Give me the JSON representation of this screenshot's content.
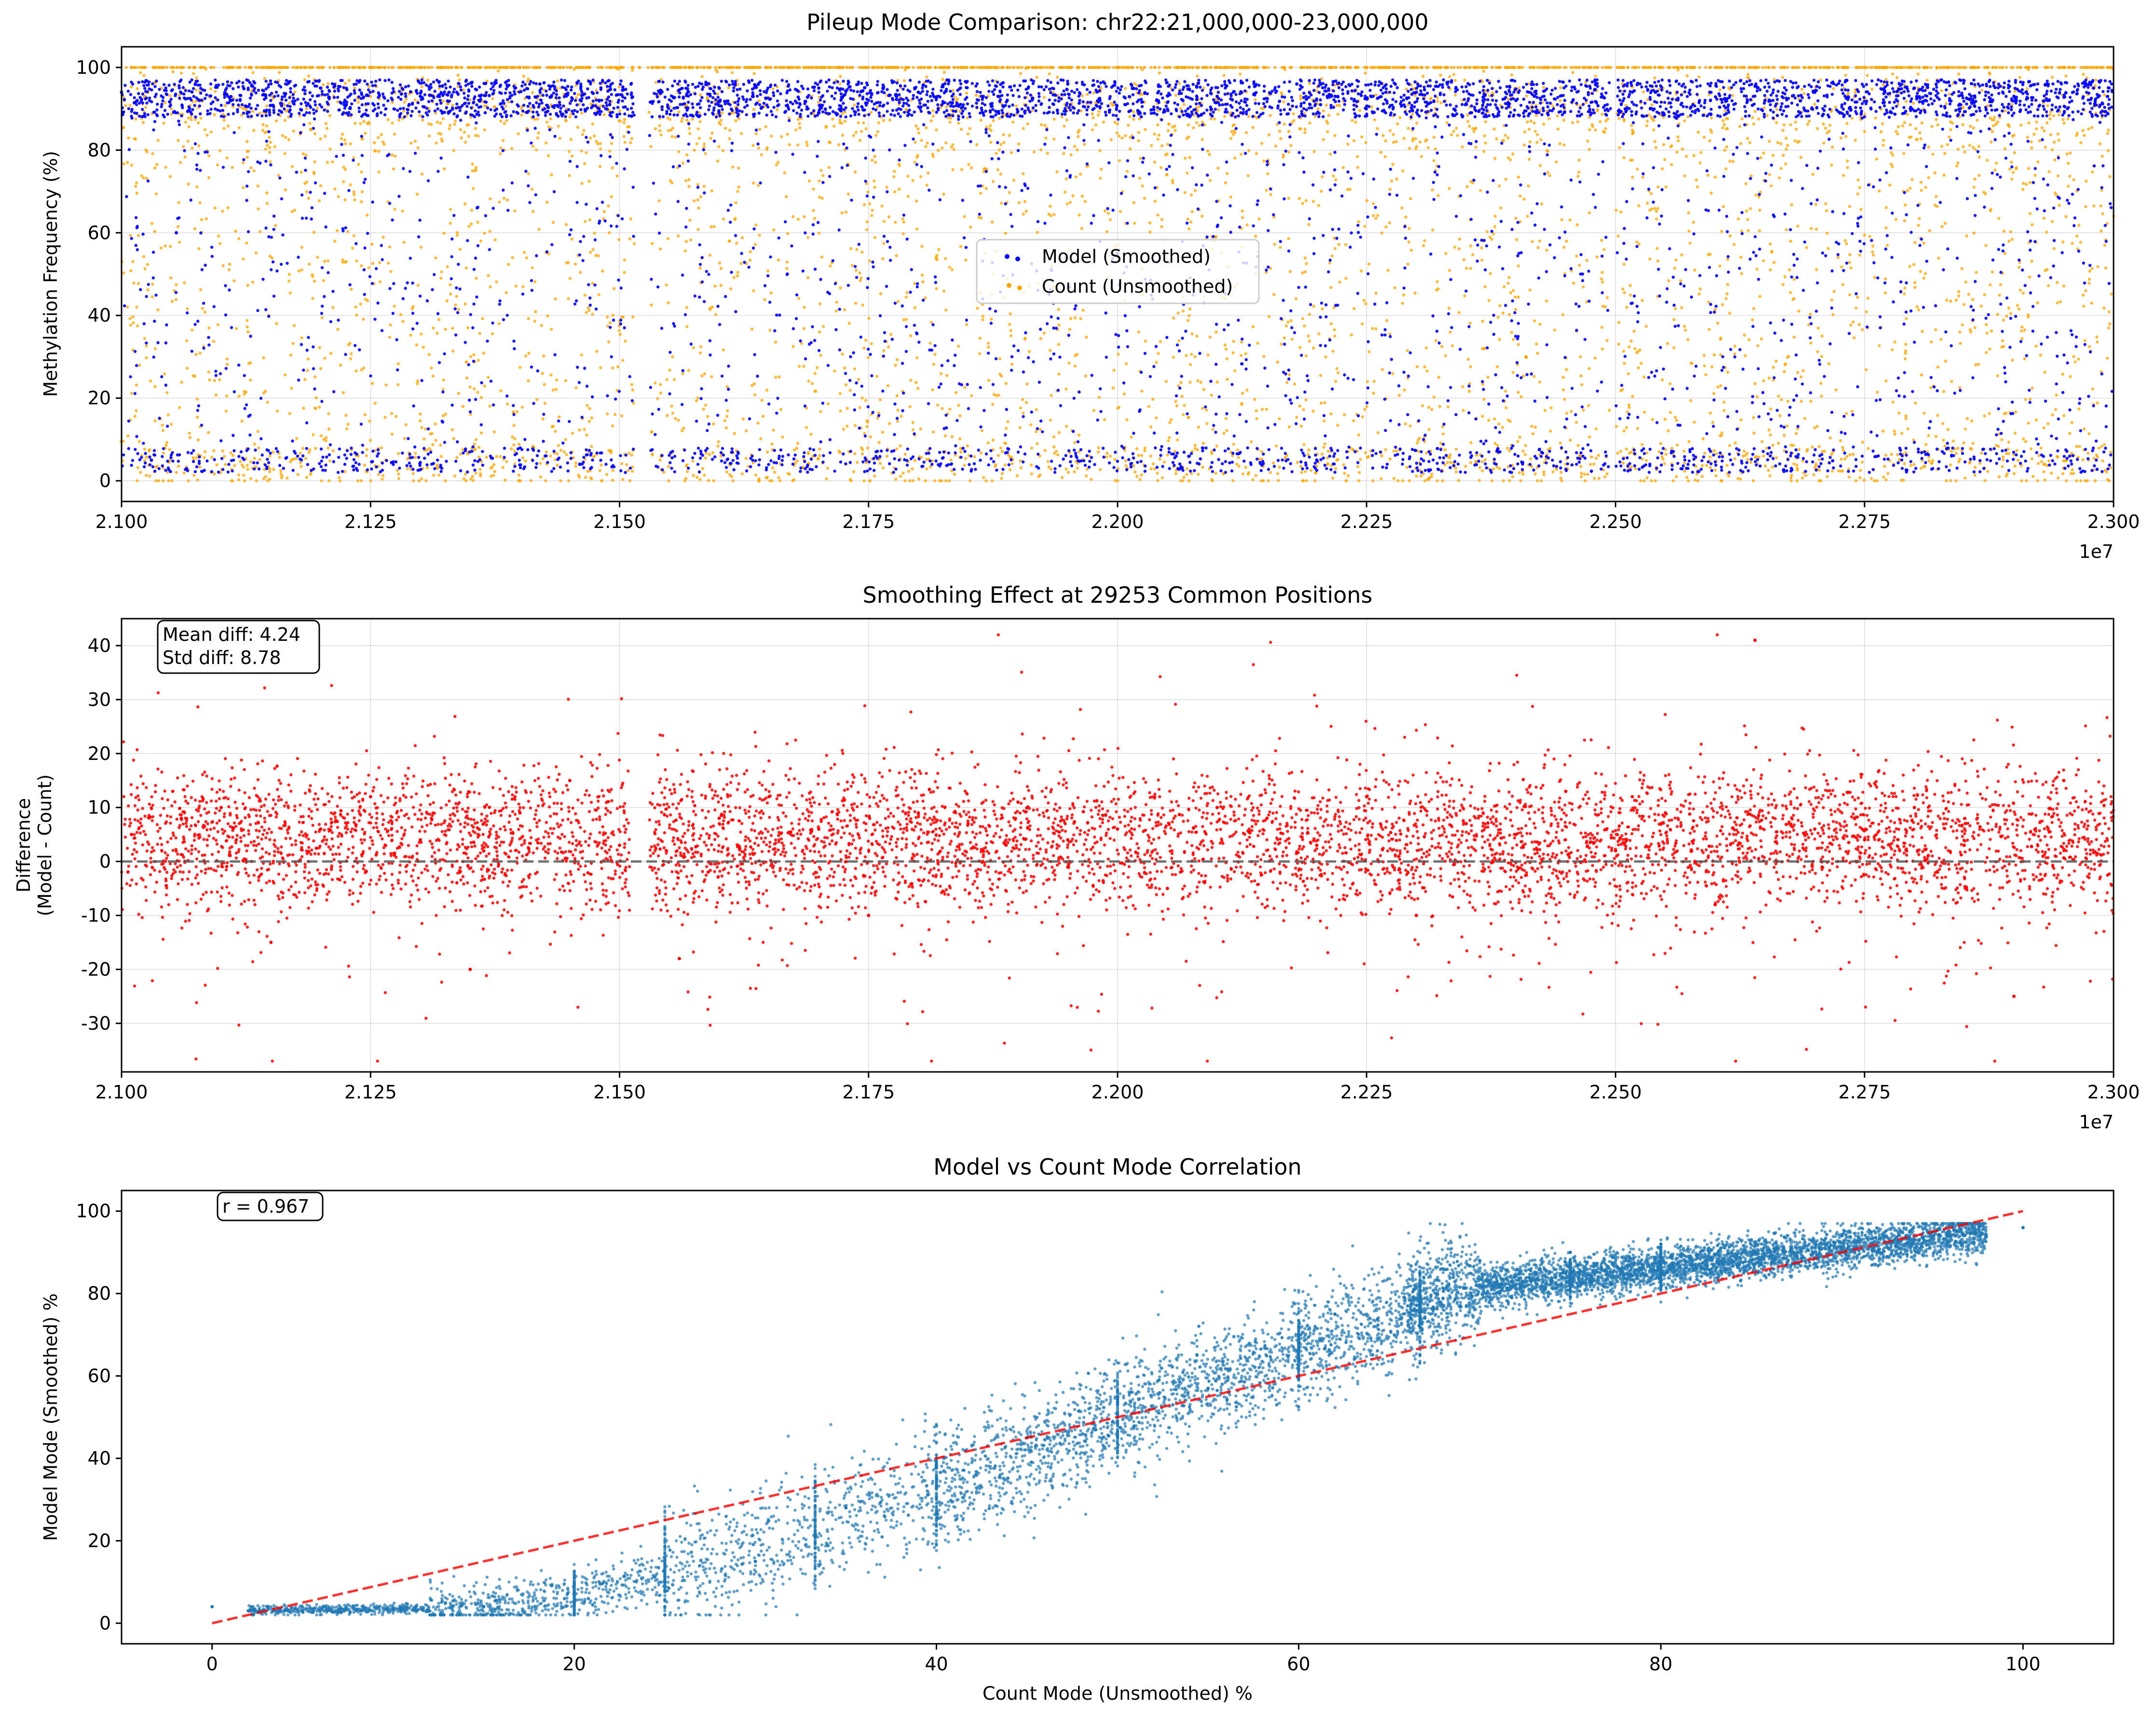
{
  "figure": {
    "panels": [
      {
        "id": "p1",
        "title": "Pileup Mode Comparison: chr22:21,000,000-23,000,000",
        "ylabel": "Methylation Frequency (%)",
        "xlim": [
          21000000,
          23000000
        ],
        "ylim": [
          -5,
          105
        ],
        "x_offset_label": "1e7",
        "xticks": [
          "2.100",
          "2.125",
          "2.150",
          "2.175",
          "2.200",
          "2.225",
          "2.250",
          "2.275",
          "2.300"
        ],
        "yticks": [
          "0",
          "20",
          "40",
          "60",
          "80",
          "100"
        ],
        "legend": {
          "placement": "center",
          "entries": [
            {
              "label": "Model (Smoothed)",
              "color": "#0000ff"
            },
            {
              "label": "Count (Unsmoothed)",
              "color": "#ffa500"
            }
          ]
        }
      },
      {
        "id": "p2",
        "title": "Smoothing Effect at 29253 Common Positions",
        "ylabel_line1": "Difference",
        "ylabel_line2": "(Model - Count)",
        "xlim": [
          21000000,
          23000000
        ],
        "ylim": [
          -39,
          45
        ],
        "x_offset_label": "1e7",
        "xticks": [
          "2.100",
          "2.125",
          "2.150",
          "2.175",
          "2.200",
          "2.225",
          "2.250",
          "2.275",
          "2.300"
        ],
        "yticks": [
          "-30",
          "-20",
          "-10",
          "0",
          "10",
          "20",
          "30",
          "40"
        ],
        "stats_line1": "Mean diff: 4.24",
        "stats_line2": "Std diff: 8.78",
        "point_color": "#ff0000"
      },
      {
        "id": "p3",
        "title": "Model vs Count Mode Correlation",
        "xlabel": "Count Mode (Unsmoothed) %",
        "ylabel": "Model Mode (Smoothed) %",
        "xlim": [
          -5,
          105
        ],
        "ylim": [
          -5,
          105
        ],
        "xticks": [
          "0",
          "20",
          "40",
          "60",
          "80",
          "100"
        ],
        "yticks": [
          "0",
          "20",
          "40",
          "60",
          "80",
          "100"
        ],
        "r_label": "r = 0.967",
        "point_color": "#1f77b4",
        "identity_line_color": "#ff0000"
      }
    ]
  },
  "chart_data": [
    {
      "type": "scatter",
      "title": "Pileup Mode Comparison: chr22:21,000,000-23,000,000",
      "xlabel": "",
      "ylabel": "Methylation Frequency (%)",
      "xlim": [
        21000000,
        23000000
      ],
      "ylim": [
        -5,
        105
      ],
      "grid": true,
      "legend": "center",
      "series": [
        {
          "name": "Model (Smoothed)",
          "color": "#0000ff",
          "x": [
            21000000,
            21030000,
            21055000,
            21110000,
            21200000,
            21300000,
            21420000,
            21460000,
            21540000,
            21600000,
            21700000,
            21800000,
            21880000,
            21950000,
            22000000,
            22100000,
            22180000,
            22200000,
            22300000,
            22400000,
            22480000,
            22540000,
            22650000,
            22700000,
            22800000,
            22900000,
            22980000
          ],
          "y": [
            94,
            5,
            60,
            92,
            95,
            93,
            96,
            4,
            94,
            95,
            95,
            94,
            93,
            96,
            55,
            93,
            96,
            5,
            94,
            92,
            96,
            94,
            92,
            94,
            95,
            93,
            95
          ]
        },
        {
          "name": "Count (Unsmoothed)",
          "color": "#ffa500",
          "x": [
            21010000,
            21080000,
            21130000,
            21190000,
            21250000,
            21320000,
            21400000,
            21470000,
            21520000,
            21570000,
            21640000,
            21720000,
            21830000,
            21870000,
            21960000,
            22060000,
            22140000,
            22250000,
            22330000,
            22410000,
            22520000,
            22640000,
            22750000,
            22860000,
            22950000
          ],
          "y": [
            100,
            100,
            100,
            85,
            100,
            100,
            100,
            100,
            100,
            100,
            0,
            100,
            100,
            100,
            100,
            100,
            100,
            100,
            100,
            30,
            100,
            100,
            100,
            100,
            100
          ]
        }
      ]
    },
    {
      "type": "scatter",
      "title": "Smoothing Effect at 29253 Common Positions",
      "xlabel": "",
      "ylabel": "Difference (Model - Count)",
      "xlim": [
        21000000,
        23000000
      ],
      "ylim": [
        -39,
        45
      ],
      "grid": true,
      "n_points": 29253,
      "mean_diff": 4.24,
      "std_diff": 8.78,
      "reference_line_y": 0,
      "series": [
        {
          "name": "",
          "color": "#ff0000",
          "x": [
            21010000,
            21060000,
            21100000,
            21150000,
            21200000,
            21250000,
            21300000,
            21350000,
            21400000,
            21450000,
            21500000,
            21560000,
            21600000,
            21650000,
            21700000,
            21750000,
            21800000,
            21850000,
            21900000,
            21950000,
            22000000,
            22050000,
            22100000,
            22150000,
            22200000,
            22250000,
            22300000,
            22350000,
            22400000,
            22450000,
            22500000,
            22550000,
            22600000,
            22640000,
            22700000,
            22750000,
            22800000,
            22850000,
            22900000,
            22950000
          ],
          "y": [
            5,
            8,
            10,
            -15,
            6,
            12,
            4,
            -20,
            9,
            15,
            3,
            -18,
            8,
            12,
            6,
            -10,
            9,
            7,
            11,
            4,
            6,
            -5,
            10,
            8,
            3,
            12,
            -10,
            7,
            5,
            13,
            2,
            9,
            -8,
            41,
            6,
            4,
            10,
            3,
            -25,
            15
          ]
        }
      ]
    },
    {
      "type": "scatter",
      "title": "Model vs Count Mode Correlation",
      "xlabel": "Count Mode (Unsmoothed) %",
      "ylabel": "Model Mode (Smoothed) %",
      "xlim": [
        -5,
        105
      ],
      "ylim": [
        -5,
        105
      ],
      "grid": false,
      "r": 0.967,
      "reference_line": {
        "x": [
          0,
          100
        ],
        "y": [
          0,
          100
        ],
        "style": "dashed",
        "color": "#ff0000"
      },
      "series": [
        {
          "name": "",
          "color": "#1f77b4",
          "x": [
            0,
            2,
            5,
            10,
            15,
            20,
            25,
            30,
            33.3,
            35,
            40,
            45,
            50,
            55,
            60,
            62,
            66.7,
            70,
            75,
            80,
            85,
            90,
            95,
            100
          ],
          "y": [
            4,
            3,
            3,
            3.5,
            4,
            5,
            10,
            15,
            25,
            28,
            38,
            45,
            50,
            57,
            68,
            75,
            82,
            88,
            90,
            92,
            93,
            94,
            95,
            96
          ]
        }
      ]
    }
  ]
}
